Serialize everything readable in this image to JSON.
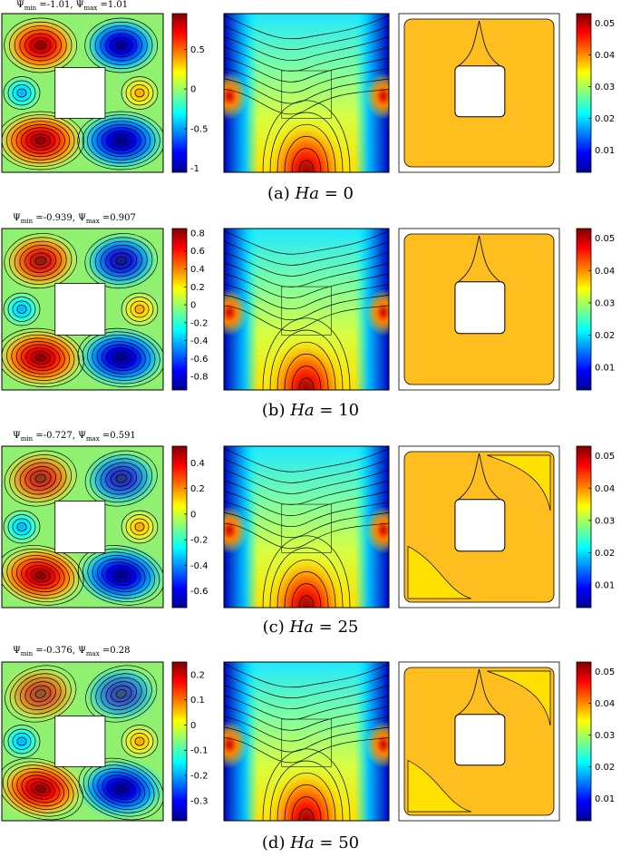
{
  "rows": [
    {
      "psi_min": "-1.01",
      "psi_max": "1.01",
      "caption_letter": "(a)",
      "ha_value": "0",
      "stream_cbar": {
        "ticks": [
          "0.5",
          "0",
          "-0.5",
          "-1"
        ],
        "tick_values": [
          0.5,
          0,
          -0.5,
          -1
        ],
        "range": [
          -1.05,
          0.95
        ]
      },
      "entropy_cbar": {
        "ticks": [
          "0.05",
          "0.04",
          "0.03",
          "0.02",
          "0.01"
        ],
        "tick_values": [
          0.05,
          0.04,
          0.03,
          0.02,
          0.01
        ],
        "range": [
          0.003,
          0.053
        ]
      }
    },
    {
      "psi_min": "-0.939",
      "psi_max": "0.907",
      "caption_letter": "(b)",
      "ha_value": "10",
      "stream_cbar": {
        "ticks": [
          "0.8",
          "0.6",
          "0.4",
          "0.2",
          "0",
          "-0.2",
          "-0.4",
          "-0.6",
          "-0.8"
        ],
        "tick_values": [
          0.8,
          0.6,
          0.4,
          0.2,
          0,
          -0.2,
          -0.4,
          -0.6,
          -0.8
        ],
        "range": [
          -0.95,
          0.85
        ]
      },
      "entropy_cbar": {
        "ticks": [
          "0.05",
          "0.04",
          "0.03",
          "0.02",
          "0.01"
        ],
        "tick_values": [
          0.05,
          0.04,
          0.03,
          0.02,
          0.01
        ],
        "range": [
          0.003,
          0.053
        ]
      }
    },
    {
      "psi_min": "-0.727",
      "psi_max": "0.591",
      "caption_letter": "(c)",
      "ha_value": "25",
      "stream_cbar": {
        "ticks": [
          "0.4",
          "0.2",
          "0",
          "-0.2",
          "-0.4",
          "-0.6"
        ],
        "tick_values": [
          0.4,
          0.2,
          0,
          -0.2,
          -0.4,
          -0.6
        ],
        "range": [
          -0.73,
          0.53
        ]
      },
      "entropy_cbar": {
        "ticks": [
          "0.05",
          "0.04",
          "0.03",
          "0.02",
          "0.01"
        ],
        "tick_values": [
          0.05,
          0.04,
          0.03,
          0.02,
          0.01
        ],
        "range": [
          0.003,
          0.053
        ]
      }
    },
    {
      "psi_min": "-0.376",
      "psi_max": "0.28",
      "caption_letter": "(d)",
      "ha_value": "50",
      "stream_cbar": {
        "ticks": [
          "0.2",
          "0.1",
          "0",
          "-0.1",
          "-0.2",
          "-0.3"
        ],
        "tick_values": [
          0.2,
          0.1,
          0,
          -0.1,
          -0.2,
          -0.3
        ],
        "range": [
          -0.38,
          0.25
        ]
      },
      "entropy_cbar": {
        "ticks": [
          "0.05",
          "0.04",
          "0.03",
          "0.02",
          "0.01"
        ],
        "tick_values": [
          0.05,
          0.04,
          0.03,
          0.02,
          0.01
        ],
        "range": [
          0.003,
          0.053
        ]
      }
    }
  ],
  "colors": {
    "jet": [
      "#00008f",
      "#0000ff",
      "#00ffff",
      "#80ff80",
      "#ffff00",
      "#ff8000",
      "#ff0000",
      "#800000"
    ],
    "entropy_fill": "#fdbe1e",
    "background_green": "#90f070"
  }
}
